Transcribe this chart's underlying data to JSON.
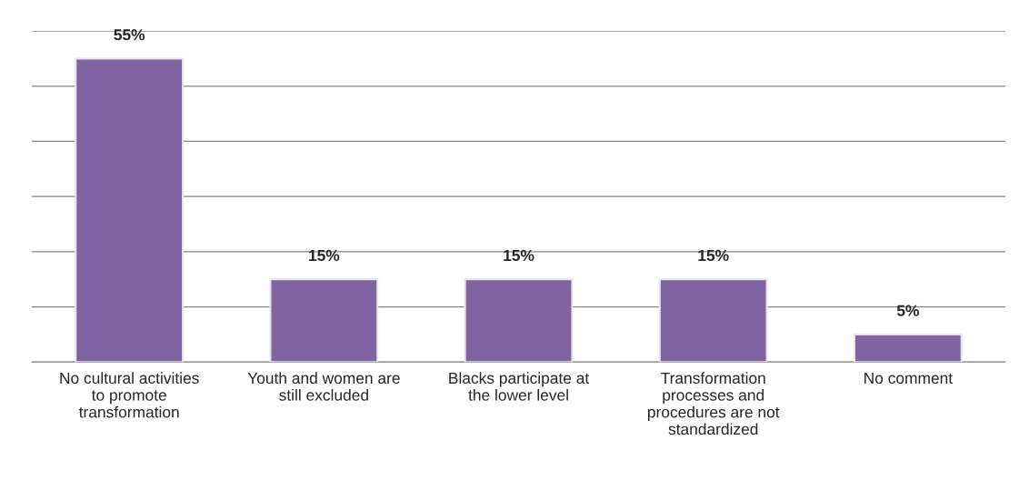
{
  "chart_data": {
    "type": "bar",
    "categories": [
      "No cultural activities to promote transformation",
      "Youth and women are still excluded",
      "Blacks participate at the lower level",
      "Transformation processes and procedures are not standardized",
      "No comment"
    ],
    "values": [
      55,
      15,
      15,
      15,
      5
    ],
    "value_labels": [
      "55%",
      "15%",
      "15%",
      "15%",
      "5%"
    ],
    "color": "#8064a2",
    "ylim": [
      0,
      60
    ],
    "yticks": [
      {
        "value": 0,
        "label": null
      },
      {
        "value": 10,
        "label": null
      },
      {
        "value": 20,
        "label": null
      },
      {
        "value": 30,
        "label": null
      },
      {
        "value": 40,
        "label": null
      },
      {
        "value": 50,
        "label": null
      },
      {
        "value": 60,
        "label": null
      }
    ],
    "tick_labels": "x",
    "grid": "y",
    "legend": false
  }
}
